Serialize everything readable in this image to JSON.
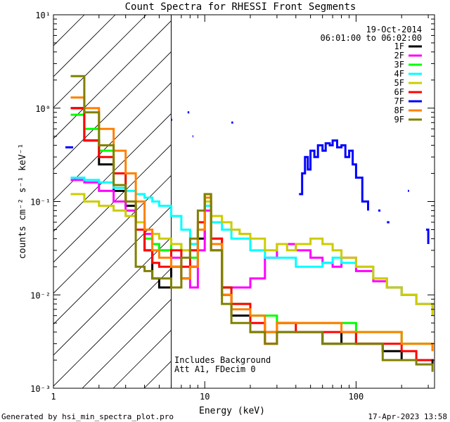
{
  "chart_data": {
    "type": "line",
    "title": "Count Spectra for RHESSI Front Segments",
    "xlabel": "Energy (keV)",
    "ylabel": "counts cm⁻² s⁻¹ keV⁻¹",
    "xscale": "log",
    "yscale": "log",
    "xlim": [
      1,
      330
    ],
    "ylim": [
      0.001,
      10
    ],
    "x_ticks": [
      {
        "value": 1,
        "label": "1"
      },
      {
        "value": 10,
        "label": "10"
      },
      {
        "value": 100,
        "label": "100"
      }
    ],
    "y_ticks": [
      {
        "value": 0.001,
        "label": "10⁻³"
      },
      {
        "value": 0.01,
        "label": "10⁻²"
      },
      {
        "value": 0.1,
        "label": "10⁻¹"
      },
      {
        "value": 1,
        "label": "10⁰"
      },
      {
        "value": 10,
        "label": "10¹"
      }
    ],
    "date": "19-Oct-2014",
    "time_range": "06:01:00 to 06:02:00",
    "annotation_lines": [
      "Includes Background",
      "Att A1, FDecim 0"
    ],
    "shaded_region": {
      "from": 1,
      "to": 6,
      "style": "diagonal hatch"
    },
    "series": [
      {
        "name": "1F",
        "color": "#000000",
        "points": [
          [
            1.3,
            1.0
          ],
          [
            1.6,
            0.45
          ],
          [
            2.0,
            0.25
          ],
          [
            2.5,
            0.13
          ],
          [
            3.0,
            0.09
          ],
          [
            3.5,
            0.06
          ],
          [
            4.0,
            0.03
          ],
          [
            4.5,
            0.015
          ],
          [
            5.0,
            0.012
          ],
          [
            6.0,
            0.02
          ],
          [
            7.0,
            0.015
          ],
          [
            8.0,
            0.02
          ],
          [
            9.0,
            0.04
          ],
          [
            10.0,
            0.1
          ],
          [
            11.0,
            0.03
          ],
          [
            13.0,
            0.01
          ],
          [
            15.0,
            0.006
          ],
          [
            20.0,
            0.004
          ],
          [
            30.0,
            0.004
          ],
          [
            40.0,
            0.004
          ],
          [
            50.0,
            0.004
          ],
          [
            60.0,
            0.003
          ],
          [
            80.0,
            0.004
          ],
          [
            100.0,
            0.003
          ],
          [
            150.0,
            0.0025
          ],
          [
            200.0,
            0.002
          ],
          [
            250.0,
            0.002
          ],
          [
            320.0,
            0.0018
          ]
        ]
      },
      {
        "name": "2F",
        "color": "#ff00ff",
        "points": [
          [
            1.3,
            0.17
          ],
          [
            1.6,
            0.16
          ],
          [
            2.0,
            0.13
          ],
          [
            2.5,
            0.1
          ],
          [
            3.0,
            0.08
          ],
          [
            3.5,
            0.06
          ],
          [
            4.0,
            0.045
          ],
          [
            4.5,
            0.035
          ],
          [
            5.0,
            0.03
          ],
          [
            6.0,
            0.025
          ],
          [
            7.0,
            0.015
          ],
          [
            8.0,
            0.012
          ],
          [
            9.0,
            0.03
          ],
          [
            10.0,
            0.08
          ],
          [
            11.0,
            0.03
          ],
          [
            13.0,
            0.012
          ],
          [
            15.0,
            0.012
          ],
          [
            20.0,
            0.015
          ],
          [
            25.0,
            0.025
          ],
          [
            30.0,
            0.035
          ],
          [
            35.0,
            0.035
          ],
          [
            40.0,
            0.03
          ],
          [
            50.0,
            0.025
          ],
          [
            60.0,
            0.022
          ],
          [
            70.0,
            0.02
          ],
          [
            80.0,
            0.025
          ],
          [
            100.0,
            0.018
          ],
          [
            130.0,
            0.014
          ],
          [
            160.0,
            0.012
          ],
          [
            200.0,
            0.01
          ],
          [
            250.0,
            0.008
          ],
          [
            320.0,
            0.007
          ]
        ]
      },
      {
        "name": "3F",
        "color": "#00ff00",
        "points": [
          [
            1.3,
            0.85
          ],
          [
            1.6,
            0.6
          ],
          [
            2.0,
            0.35
          ],
          [
            2.5,
            0.2
          ],
          [
            3.0,
            0.1
          ],
          [
            3.5,
            0.06
          ],
          [
            4.0,
            0.04
          ],
          [
            4.5,
            0.035
          ],
          [
            5.0,
            0.03
          ],
          [
            6.0,
            0.035
          ],
          [
            7.0,
            0.03
          ],
          [
            8.0,
            0.025
          ],
          [
            9.0,
            0.05
          ],
          [
            10.0,
            0.12
          ],
          [
            11.0,
            0.04
          ],
          [
            13.0,
            0.012
          ],
          [
            15.0,
            0.008
          ],
          [
            20.0,
            0.006
          ],
          [
            30.0,
            0.005
          ],
          [
            40.0,
            0.005
          ],
          [
            50.0,
            0.005
          ],
          [
            60.0,
            0.005
          ],
          [
            80.0,
            0.005
          ],
          [
            100.0,
            0.004
          ],
          [
            150.0,
            0.004
          ],
          [
            200.0,
            0.003
          ],
          [
            250.0,
            0.003
          ],
          [
            320.0,
            0.0025
          ]
        ]
      },
      {
        "name": "4F",
        "color": "#00ffff",
        "points": [
          [
            1.3,
            0.18
          ],
          [
            1.6,
            0.17
          ],
          [
            2.0,
            0.16
          ],
          [
            2.5,
            0.14
          ],
          [
            3.0,
            0.13
          ],
          [
            3.5,
            0.12
          ],
          [
            4.0,
            0.11
          ],
          [
            4.5,
            0.1
          ],
          [
            5.0,
            0.09
          ],
          [
            6.0,
            0.07
          ],
          [
            7.0,
            0.05
          ],
          [
            8.0,
            0.035
          ],
          [
            9.0,
            0.05
          ],
          [
            10.0,
            0.09
          ],
          [
            11.0,
            0.06
          ],
          [
            13.0,
            0.05
          ],
          [
            15.0,
            0.04
          ],
          [
            20.0,
            0.03
          ],
          [
            25.0,
            0.025
          ],
          [
            30.0,
            0.025
          ],
          [
            40.0,
            0.02
          ],
          [
            50.0,
            0.02
          ],
          [
            60.0,
            0.022
          ],
          [
            70.0,
            0.025
          ],
          [
            80.0,
            0.022
          ],
          [
            100.0,
            0.02
          ],
          [
            130.0,
            0.015
          ],
          [
            160.0,
            0.012
          ],
          [
            200.0,
            0.01
          ],
          [
            250.0,
            0.008
          ],
          [
            320.0,
            0.007
          ]
        ]
      },
      {
        "name": "5F",
        "color": "#cccc00",
        "points": [
          [
            1.3,
            0.12
          ],
          [
            1.6,
            0.1
          ],
          [
            2.0,
            0.09
          ],
          [
            2.5,
            0.08
          ],
          [
            3.0,
            0.07
          ],
          [
            3.5,
            0.06
          ],
          [
            4.0,
            0.05
          ],
          [
            4.5,
            0.045
          ],
          [
            5.0,
            0.04
          ],
          [
            6.0,
            0.035
          ],
          [
            7.0,
            0.03
          ],
          [
            8.0,
            0.03
          ],
          [
            9.0,
            0.05
          ],
          [
            10.0,
            0.1
          ],
          [
            11.0,
            0.07
          ],
          [
            13.0,
            0.06
          ],
          [
            15.0,
            0.05
          ],
          [
            17.0,
            0.045
          ],
          [
            20.0,
            0.04
          ],
          [
            25.0,
            0.03
          ],
          [
            30.0,
            0.035
          ],
          [
            35.0,
            0.03
          ],
          [
            40.0,
            0.035
          ],
          [
            50.0,
            0.04
          ],
          [
            60.0,
            0.035
          ],
          [
            70.0,
            0.03
          ],
          [
            80.0,
            0.025
          ],
          [
            100.0,
            0.02
          ],
          [
            130.0,
            0.015
          ],
          [
            160.0,
            0.012
          ],
          [
            200.0,
            0.01
          ],
          [
            250.0,
            0.008
          ],
          [
            320.0,
            0.006
          ]
        ]
      },
      {
        "name": "6F",
        "color": "#ff0000",
        "points": [
          [
            1.3,
            1.0
          ],
          [
            1.6,
            0.45
          ],
          [
            2.0,
            0.3
          ],
          [
            2.5,
            0.2
          ],
          [
            3.0,
            0.1
          ],
          [
            3.5,
            0.05
          ],
          [
            4.0,
            0.03
          ],
          [
            4.5,
            0.022
          ],
          [
            5.0,
            0.02
          ],
          [
            6.0,
            0.03
          ],
          [
            7.0,
            0.02
          ],
          [
            8.0,
            0.03
          ],
          [
            9.0,
            0.06
          ],
          [
            10.0,
            0.12
          ],
          [
            11.0,
            0.04
          ],
          [
            13.0,
            0.012
          ],
          [
            15.0,
            0.008
          ],
          [
            20.0,
            0.005
          ],
          [
            25.0,
            0.003
          ],
          [
            30.0,
            0.005
          ],
          [
            40.0,
            0.004
          ],
          [
            50.0,
            0.004
          ],
          [
            60.0,
            0.004
          ],
          [
            80.0,
            0.004
          ],
          [
            100.0,
            0.003
          ],
          [
            150.0,
            0.003
          ],
          [
            200.0,
            0.0025
          ],
          [
            250.0,
            0.002
          ],
          [
            320.0,
            0.002
          ]
        ]
      },
      {
        "name": "7F",
        "color": "#0000ff",
        "points": [
          [
            1.2,
            0.38
          ],
          [
            1.35,
            0.38
          ],
          [
            null,
            null
          ],
          [
            6.0,
            0.75
          ],
          [
            6.1,
            0.75
          ],
          [
            null,
            null
          ],
          [
            7.7,
            0.9
          ],
          [
            7.9,
            0.9
          ],
          [
            null,
            null
          ],
          [
            8.3,
            0.5
          ],
          [
            8.4,
            0.5
          ],
          [
            null,
            null
          ],
          [
            15.0,
            0.7
          ],
          [
            15.4,
            0.7
          ],
          [
            null,
            null
          ],
          [
            42.0,
            0.12
          ],
          [
            44.0,
            0.2
          ],
          [
            46.0,
            0.3
          ],
          [
            48.0,
            0.22
          ],
          [
            50.0,
            0.35
          ],
          [
            53.0,
            0.3
          ],
          [
            56.0,
            0.4
          ],
          [
            60.0,
            0.35
          ],
          [
            63.0,
            0.42
          ],
          [
            67.0,
            0.4
          ],
          [
            70.0,
            0.45
          ],
          [
            75.0,
            0.38
          ],
          [
            80.0,
            0.4
          ],
          [
            85.0,
            0.3
          ],
          [
            90.0,
            0.35
          ],
          [
            95.0,
            0.25
          ],
          [
            100.0,
            0.18
          ],
          [
            110.0,
            0.1
          ],
          [
            120.0,
            0.08
          ],
          [
            null,
            null
          ],
          [
            140.0,
            0.08
          ],
          [
            145.0,
            0.08
          ],
          [
            null,
            null
          ],
          [
            160.0,
            0.06
          ],
          [
            166.0,
            0.06
          ],
          [
            null,
            null
          ],
          [
            220.0,
            0.13
          ],
          [
            224.0,
            0.13
          ],
          [
            null,
            null
          ],
          [
            290.0,
            0.05
          ],
          [
            300.0,
            0.035
          ]
        ]
      },
      {
        "name": "8F",
        "color": "#ff8000",
        "points": [
          [
            1.3,
            1.3
          ],
          [
            1.6,
            1.0
          ],
          [
            2.0,
            0.6
          ],
          [
            2.5,
            0.35
          ],
          [
            3.0,
            0.2
          ],
          [
            3.5,
            0.1
          ],
          [
            4.0,
            0.05
          ],
          [
            4.5,
            0.03
          ],
          [
            5.0,
            0.025
          ],
          [
            6.0,
            0.02
          ],
          [
            7.0,
            0.015
          ],
          [
            8.0,
            0.02
          ],
          [
            9.0,
            0.05
          ],
          [
            10.0,
            0.11
          ],
          [
            11.0,
            0.035
          ],
          [
            13.0,
            0.01
          ],
          [
            15.0,
            0.007
          ],
          [
            20.0,
            0.006
          ],
          [
            25.0,
            0.004
          ],
          [
            30.0,
            0.005
          ],
          [
            40.0,
            0.005
          ],
          [
            50.0,
            0.005
          ],
          [
            60.0,
            0.005
          ],
          [
            80.0,
            0.004
          ],
          [
            100.0,
            0.004
          ],
          [
            150.0,
            0.004
          ],
          [
            200.0,
            0.003
          ],
          [
            250.0,
            0.003
          ],
          [
            320.0,
            0.0025
          ]
        ]
      },
      {
        "name": "9F",
        "color": "#808000",
        "points": [
          [
            1.3,
            2.2
          ],
          [
            1.6,
            0.9
          ],
          [
            2.0,
            0.4
          ],
          [
            2.5,
            0.15
          ],
          [
            3.0,
            0.1
          ],
          [
            3.5,
            0.02
          ],
          [
            4.0,
            0.018
          ],
          [
            4.5,
            0.015
          ],
          [
            5.0,
            0.015
          ],
          [
            6.0,
            0.012
          ],
          [
            7.0,
            0.025
          ],
          [
            8.0,
            0.04
          ],
          [
            9.0,
            0.08
          ],
          [
            10.0,
            0.12
          ],
          [
            11.0,
            0.03
          ],
          [
            13.0,
            0.008
          ],
          [
            15.0,
            0.005
          ],
          [
            20.0,
            0.004
          ],
          [
            25.0,
            0.003
          ],
          [
            30.0,
            0.004
          ],
          [
            40.0,
            0.004
          ],
          [
            50.0,
            0.004
          ],
          [
            60.0,
            0.003
          ],
          [
            80.0,
            0.003
          ],
          [
            100.0,
            0.003
          ],
          [
            150.0,
            0.002
          ],
          [
            200.0,
            0.002
          ],
          [
            250.0,
            0.0018
          ],
          [
            320.0,
            0.0015
          ]
        ]
      }
    ]
  },
  "footer": {
    "generated_by": "Generated by hsi_min_spectra_plot.pro",
    "timestamp": "17-Apr-2023 13:58"
  }
}
